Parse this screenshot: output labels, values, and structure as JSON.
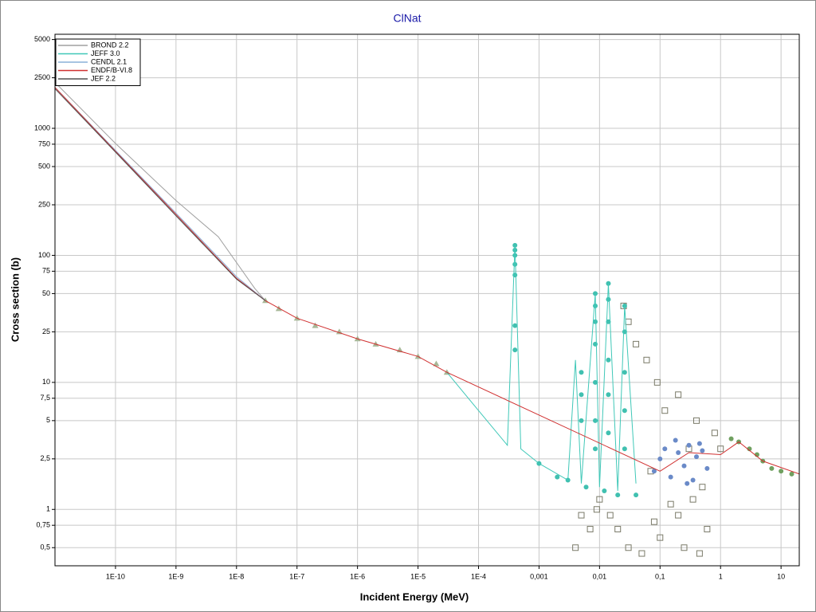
{
  "chart_data": {
    "type": "scatter",
    "title": "ClNat",
    "x_label": "Incident Energy (MeV)",
    "y_label": "Cross section (b)",
    "log_x": true,
    "log_y": true,
    "grid": true,
    "legend": "top-left",
    "xlim": [
      1e-11,
      20
    ],
    "ylim": [
      0.36,
      5500
    ],
    "xticks": [
      {
        "value": 1e-10,
        "label": "1E-10"
      },
      {
        "value": 1e-09,
        "label": "1E-9"
      },
      {
        "value": 1e-08,
        "label": "1E-8"
      },
      {
        "value": 1e-07,
        "label": "1E-7"
      },
      {
        "value": 1e-06,
        "label": "1E-6"
      },
      {
        "value": 1e-05,
        "label": "1E-5"
      },
      {
        "value": 0.0001,
        "label": "1E-4"
      },
      {
        "value": 0.001,
        "label": "0,001"
      },
      {
        "value": 0.01,
        "label": "0,01"
      },
      {
        "value": 0.1,
        "label": "0,1"
      },
      1,
      10
    ],
    "yticks": [
      5000,
      2500,
      1000,
      750,
      500,
      250,
      100,
      75,
      50,
      25,
      10,
      {
        "value": 7.5,
        "label": "7,5"
      },
      5,
      {
        "value": 2.5,
        "label": "2,5"
      },
      1,
      {
        "value": 0.75,
        "label": "0,75"
      },
      {
        "value": 0.5,
        "label": "0,5"
      }
    ],
    "series": [
      {
        "name": "BROND 2.2",
        "color": "#a0a0a0",
        "x": [
          1e-11,
          1e-10,
          1e-09,
          5e-09,
          2e-08,
          3e-08
        ],
        "values": [
          2300,
          760,
          270,
          140,
          55,
          44
        ]
      },
      {
        "name": "JEFF 3.0",
        "color": "#40c8b8",
        "x": [
          3e-05,
          0.0001,
          0.0003,
          0.0004,
          0.0005,
          0.001,
          0.003,
          0.004,
          0.005,
          0.0085,
          0.01,
          0.014,
          0.02,
          0.026,
          0.04
        ],
        "values": [
          12,
          6,
          3.2,
          120,
          3,
          2.3,
          1.7,
          15,
          1.6,
          50,
          1.5,
          60,
          1.4,
          40,
          1.6
        ]
      },
      {
        "name": "CENDL 2.1",
        "color": "#8ab0d8",
        "x": [
          1e-11,
          1e-10,
          1e-09,
          1e-08,
          3e-08
        ],
        "values": [
          2100,
          670,
          215,
          68,
          44
        ]
      },
      {
        "name": "ENDF/B-VI.8",
        "color": "#d03030",
        "x": [
          1e-11,
          1e-10,
          1e-09,
          1e-08,
          3e-08,
          1e-07,
          1e-06,
          1e-05,
          3e-05,
          0.1,
          0.3,
          1,
          2,
          5,
          20
        ],
        "values": [
          2100,
          660,
          210,
          66,
          44,
          32,
          22,
          16,
          12,
          2,
          2.8,
          2.7,
          3.4,
          2.4,
          1.9
        ]
      },
      {
        "name": "JEF 2.2",
        "color": "#505050",
        "x": [
          1e-11,
          1e-10,
          1e-09,
          1e-08,
          3e-08
        ],
        "values": [
          2050,
          650,
          205,
          65,
          44
        ]
      }
    ],
    "points": [
      {
        "marker": "triangle",
        "color": "#a8b898",
        "x": [
          3e-08,
          5e-08,
          1e-07,
          2e-07,
          5e-07,
          1e-06,
          2e-06,
          5e-06,
          1e-05,
          2e-05,
          3e-05
        ],
        "values": [
          44,
          38,
          32,
          28,
          25,
          22,
          20,
          18,
          16,
          14,
          12
        ]
      },
      {
        "marker": "square",
        "color": "#7a7a68",
        "x": [
          0.01,
          0.015,
          0.02,
          0.03,
          0.05,
          0.06,
          0.08,
          0.1,
          0.12,
          0.15,
          0.2,
          0.2,
          0.3,
          0.4,
          0.5,
          0.6,
          0.8,
          1,
          0.04,
          0.03,
          0.025,
          0.004,
          0.005,
          0.007,
          0.009,
          0.07,
          0.09,
          0.25,
          0.35,
          0.45
        ],
        "values": [
          1.2,
          0.9,
          0.7,
          0.5,
          0.45,
          15,
          0.8,
          0.6,
          6,
          1.1,
          0.9,
          8,
          3,
          5,
          1.5,
          0.7,
          4,
          3,
          20,
          30,
          40,
          0.5,
          0.9,
          0.7,
          1,
          2,
          10,
          0.5,
          1.2,
          0.45
        ]
      },
      {
        "marker": "circle",
        "color": "#40c0b0",
        "x": [
          0.0004,
          0.0004,
          0.0004,
          0.0004,
          0.0004,
          0.0004,
          0.0004,
          0.0085,
          0.0085,
          0.0085,
          0.0085,
          0.0085,
          0.0085,
          0.0085,
          0.014,
          0.014,
          0.014,
          0.014,
          0.014,
          0.014,
          0.026,
          0.026,
          0.026,
          0.026,
          0.026,
          0.005,
          0.005,
          0.005,
          0.001,
          0.002,
          0.003,
          0.006,
          0.012,
          0.02,
          0.04
        ],
        "values": [
          120,
          110,
          100,
          85,
          70,
          28,
          18,
          50,
          40,
          30,
          20,
          10,
          5,
          3,
          60,
          45,
          30,
          15,
          8,
          4,
          40,
          25,
          12,
          6,
          3,
          12,
          8,
          5,
          2.3,
          1.8,
          1.7,
          1.5,
          1.4,
          1.3,
          1.3
        ]
      },
      {
        "marker": "circle",
        "color": "#6a8ac8",
        "x": [
          0.08,
          0.1,
          0.12,
          0.15,
          0.2,
          0.25,
          0.3,
          0.35,
          0.4,
          0.5,
          0.6,
          0.18,
          0.28,
          0.45
        ],
        "values": [
          2,
          2.5,
          3,
          1.8,
          2.8,
          2.2,
          3.2,
          1.7,
          2.6,
          2.9,
          2.1,
          3.5,
          1.6,
          3.3
        ]
      },
      {
        "marker": "circle",
        "color": "#70a060",
        "x": [
          1.5,
          2,
          3,
          4,
          5,
          7,
          10,
          15
        ],
        "values": [
          3.6,
          3.4,
          3,
          2.7,
          2.4,
          2.1,
          2,
          1.9
        ]
      }
    ]
  }
}
